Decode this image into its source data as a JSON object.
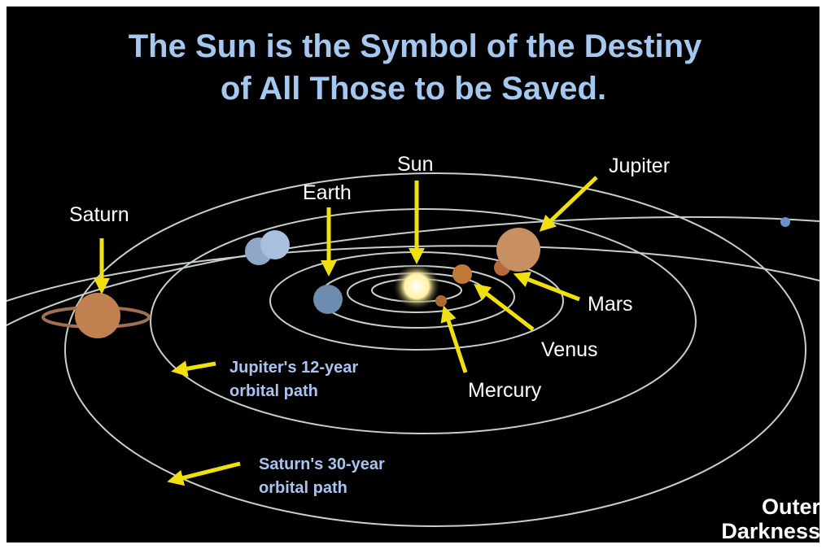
{
  "title": {
    "lines": [
      "The Sun is the Symbol of the Destiny",
      "of All Those to be Saved."
    ]
  },
  "planet_labels": {
    "sun": "Sun",
    "earth": "Earth",
    "jupiter": "Jupiter",
    "saturn": "Saturn",
    "mars": "Mars",
    "venus": "Venus",
    "mercury": "Mercury"
  },
  "orbit_labels": {
    "jupiter": [
      "Jupiter's 12-year",
      "orbital path"
    ],
    "saturn": [
      "Saturn's 30-year",
      "orbital path"
    ]
  },
  "corner_label": [
    "Outer",
    "Darkness"
  ]
}
